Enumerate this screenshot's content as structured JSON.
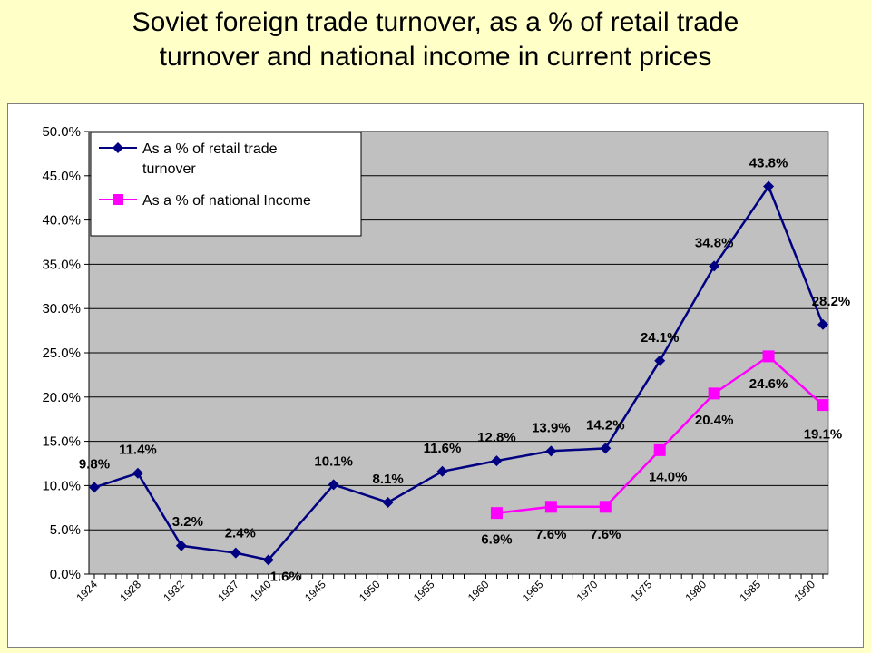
{
  "chart_data": {
    "type": "line",
    "title": "Soviet foreign trade turnover, as a % of retail trade turnover and national income in current prices",
    "title_lines": [
      "Soviet foreign trade turnover, as a % of retail trade",
      "turnover and national income in current prices"
    ],
    "xlabel": "",
    "ylabel": "",
    "ylim": [
      0,
      50
    ],
    "y_ticks": [
      "0.0%",
      "5.0%",
      "10.0%",
      "15.0%",
      "20.0%",
      "25.0%",
      "30.0%",
      "35.0%",
      "40.0%",
      "45.0%",
      "50.0%"
    ],
    "x_tick_labels": [
      "1924",
      "1928",
      "1932",
      "1937",
      "1940",
      "1945",
      "1950",
      "1955",
      "1960",
      "1965",
      "1970",
      "1975",
      "1980",
      "1985",
      "1990"
    ],
    "grid": "horizontal",
    "legend_position": "top-left",
    "series": [
      {
        "name": "As a % of retail trade turnover",
        "legend_lines": [
          "As a % of retail trade",
          "turnover"
        ],
        "color": "#000080",
        "marker": "diamond",
        "points": [
          {
            "x": 1924,
            "y": 9.8,
            "label": "9.8%"
          },
          {
            "x": 1928,
            "y": 11.4,
            "label": "11.4%"
          },
          {
            "x": 1932,
            "y": 3.2,
            "label": "3.2%"
          },
          {
            "x": 1937,
            "y": 2.4,
            "label": "2.4%"
          },
          {
            "x": 1940,
            "y": 1.6,
            "label": "1.6%"
          },
          {
            "x": 1946,
            "y": 10.1,
            "label": "10.1%"
          },
          {
            "x": 1951,
            "y": 8.1,
            "label": "8.1%"
          },
          {
            "x": 1956,
            "y": 11.6,
            "label": "11.6%"
          },
          {
            "x": 1961,
            "y": 12.8,
            "label": "12.8%"
          },
          {
            "x": 1966,
            "y": 13.9,
            "label": "13.9%"
          },
          {
            "x": 1971,
            "y": 14.2,
            "label": "14.2%"
          },
          {
            "x": 1976,
            "y": 24.1,
            "label": "24.1%"
          },
          {
            "x": 1981,
            "y": 34.8,
            "label": "34.8%"
          },
          {
            "x": 1986,
            "y": 43.8,
            "label": "43.8%"
          },
          {
            "x": 1991,
            "y": 28.2,
            "label": "28.2%"
          }
        ]
      },
      {
        "name": "As a % of national Income",
        "legend_lines": [
          "As a % of national Income"
        ],
        "color": "#ff00ff",
        "marker": "square",
        "points": [
          {
            "x": 1961,
            "y": 6.9,
            "label": "6.9%"
          },
          {
            "x": 1966,
            "y": 7.6,
            "label": "7.6%"
          },
          {
            "x": 1971,
            "y": 7.6,
            "label": "7.6%"
          },
          {
            "x": 1976,
            "y": 14.0,
            "label": "14.0%"
          },
          {
            "x": 1981,
            "y": 20.4,
            "label": "20.4%"
          },
          {
            "x": 1986,
            "y": 24.6,
            "label": "24.6%"
          },
          {
            "x": 1991,
            "y": 19.1,
            "label": "19.1%"
          }
        ]
      }
    ]
  }
}
